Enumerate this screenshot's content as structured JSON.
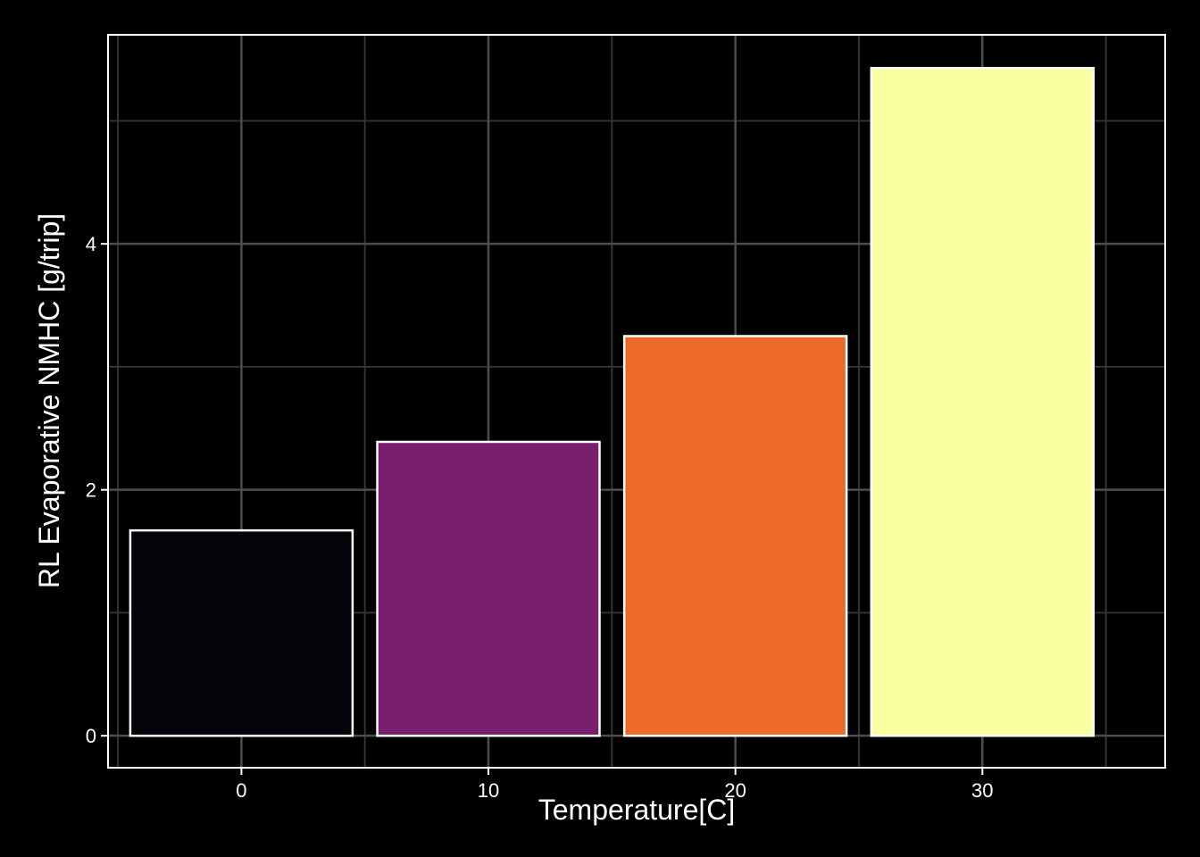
{
  "chart_data": {
    "type": "bar",
    "title": "",
    "xlabel": "Temperature[C]",
    "ylabel": "RL Evaporative NMHC [g/trip]",
    "x": [
      0,
      10,
      20,
      30
    ],
    "values": [
      1.67,
      2.39,
      3.25,
      5.43
    ],
    "bar_width": 9,
    "xlim": [
      -5.4,
      37.4
    ],
    "ylim": [
      -0.26,
      5.7
    ],
    "x_ticks": [
      0,
      10,
      20,
      30
    ],
    "x_minor_ticks": [
      -5,
      5,
      15,
      25,
      35
    ],
    "y_ticks": [
      0,
      2,
      4
    ],
    "y_minor_ticks": [
      1,
      3,
      5
    ],
    "grid": true,
    "legend": "none",
    "colors": {
      "background": "#000000",
      "panel": "#000000",
      "grid_major": "#4d4d4d",
      "grid_minor": "#333333",
      "bar_outline": "#ffffff",
      "text": "#ffffff",
      "bars": [
        "#03040a",
        "#7a1f6e",
        "#ec6a29",
        "#fbfea0"
      ]
    }
  }
}
